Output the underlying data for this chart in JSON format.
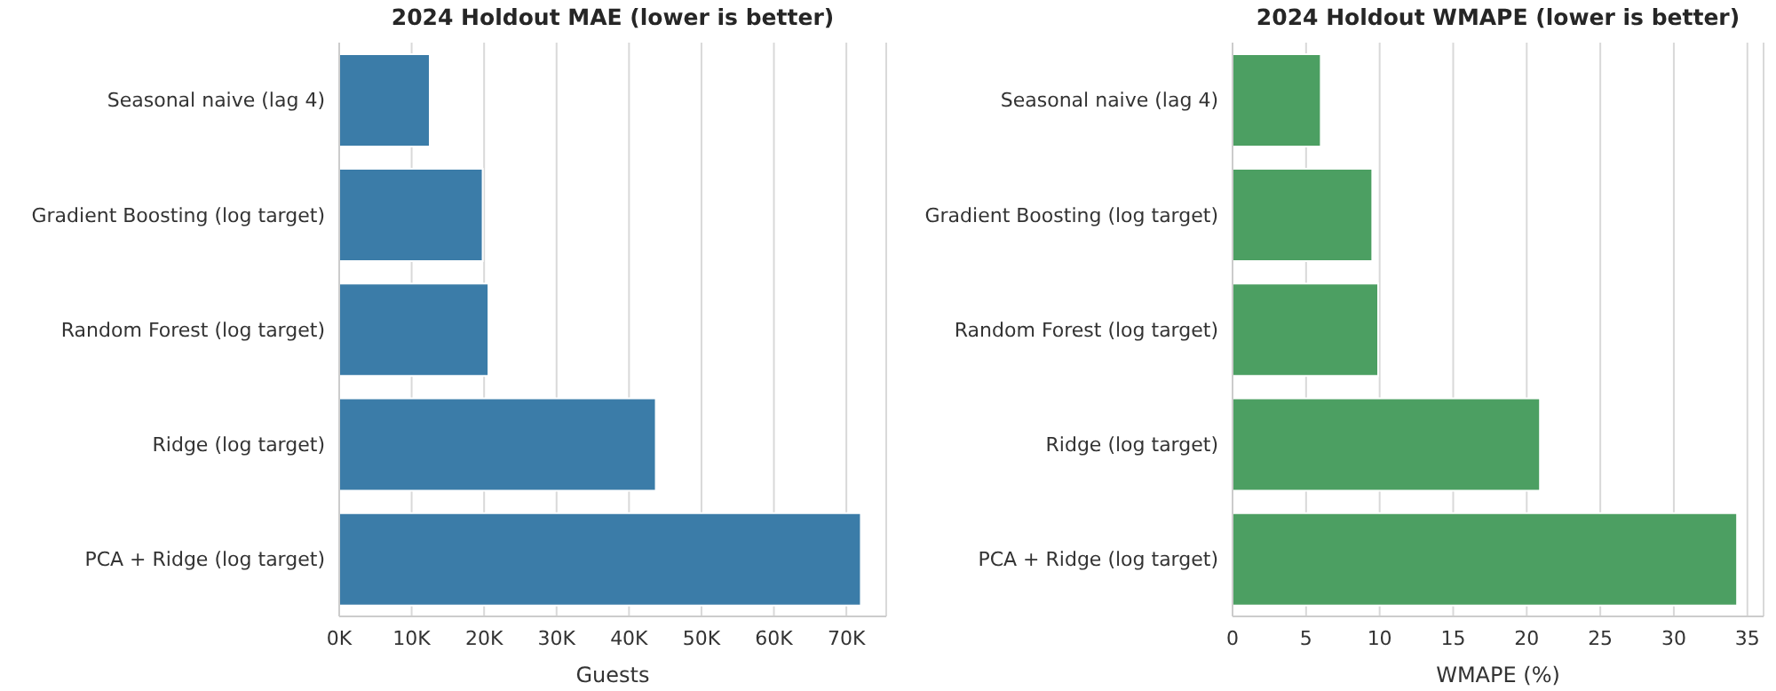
{
  "chart_data": [
    {
      "type": "bar",
      "orientation": "horizontal",
      "title": "2024 Holdout MAE (lower is better)",
      "xlabel": "Guests",
      "categories": [
        "Seasonal naive (lag 4)",
        "Gradient Boosting (log target)",
        "Random Forest (log target)",
        "Ridge (log target)",
        "PCA + Ridge (log target)"
      ],
      "values": [
        12500,
        19800,
        20600,
        43700,
        72000
      ],
      "color": "#3b7ca8",
      "xlim": [
        0,
        75500
      ],
      "xticks": [
        {
          "value": 0,
          "label": "0K"
        },
        {
          "value": 10000,
          "label": "10K"
        },
        {
          "value": 20000,
          "label": "20K"
        },
        {
          "value": 30000,
          "label": "30K"
        },
        {
          "value": 40000,
          "label": "40K"
        },
        {
          "value": 50000,
          "label": "50K"
        },
        {
          "value": 60000,
          "label": "60K"
        },
        {
          "value": 70000,
          "label": "70K"
        }
      ],
      "grid": "x"
    },
    {
      "type": "bar",
      "orientation": "horizontal",
      "title": "2024 Holdout WMAPE (lower is better)",
      "xlabel": "WMAPE (%)",
      "categories": [
        "Seasonal naive (lag 4)",
        "Gradient Boosting (log target)",
        "Random Forest (log target)",
        "Ridge (log target)",
        "PCA + Ridge (log target)"
      ],
      "values": [
        6.0,
        9.5,
        9.9,
        20.9,
        34.3
      ],
      "color": "#4c9f62",
      "xlim": [
        0,
        36.1
      ],
      "xticks": [
        0,
        5,
        10,
        15,
        20,
        25,
        30,
        35
      ],
      "grid": "x"
    }
  ]
}
